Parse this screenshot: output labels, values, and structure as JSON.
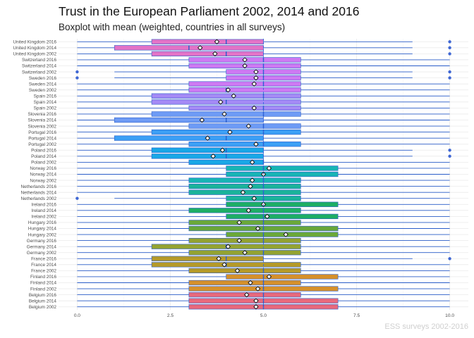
{
  "chart_data": {
    "type": "boxplot",
    "title": "Trust in the European Parliament 2002, 2014 and 2016",
    "subtitle": "Boxplot with mean (weighted, countries in all surveys)",
    "caption": "ESS surveys 2002-2016",
    "xlim": [
      -0.5,
      10.5
    ],
    "xticks": [
      "0.0",
      "2.5",
      "5.0",
      "7.5",
      "10.0"
    ],
    "grid": true,
    "overall_mean": 5.0,
    "categories": [
      {
        "label": "United Kingdom 2016",
        "color": "#e373c7",
        "whisker": [
          0,
          9
        ],
        "box": [
          2,
          5
        ],
        "median": 4,
        "mean": 3.75,
        "outliers": [
          10
        ]
      },
      {
        "label": "United Kingdom 2014",
        "color": "#e373c7",
        "whisker": [
          0,
          9
        ],
        "box": [
          1,
          5
        ],
        "median": 3,
        "mean": 3.3,
        "outliers": [
          10
        ]
      },
      {
        "label": "United Kingdom 2002",
        "color": "#e373c7",
        "whisker": [
          0,
          9
        ],
        "box": [
          2,
          5
        ],
        "median": 4,
        "mean": 3.7,
        "outliers": [
          10
        ]
      },
      {
        "label": "Switzerland 2016",
        "color": "#cd79f2",
        "whisker": [
          0,
          10
        ],
        "box": [
          3,
          6
        ],
        "median": 5,
        "mean": 4.5,
        "outliers": []
      },
      {
        "label": "Switzerland 2014",
        "color": "#cd79f2",
        "whisker": [
          0,
          10
        ],
        "box": [
          3,
          6
        ],
        "median": 5,
        "mean": 4.5,
        "outliers": []
      },
      {
        "label": "Switzerland 2002",
        "color": "#cd79f2",
        "whisker": [
          1,
          9
        ],
        "box": [
          4,
          6
        ],
        "median": 5,
        "mean": 4.8,
        "outliers": [
          0,
          10
        ]
      },
      {
        "label": "Sweden 2016",
        "color": "#cd79f2",
        "whisker": [
          1,
          9
        ],
        "box": [
          4,
          6
        ],
        "median": 5,
        "mean": 4.8,
        "outliers": [
          0,
          10
        ]
      },
      {
        "label": "Sweden 2014",
        "color": "#cd79f2",
        "whisker": [
          0,
          10
        ],
        "box": [
          3,
          6
        ],
        "median": 5,
        "mean": 4.75,
        "outliers": []
      },
      {
        "label": "Sweden 2002",
        "color": "#cd79f2",
        "whisker": [
          0,
          10
        ],
        "box": [
          3,
          6
        ],
        "median": 4,
        "mean": 4.05,
        "outliers": []
      },
      {
        "label": "Spain 2016",
        "color": "#a48af5",
        "whisker": [
          0,
          10
        ],
        "box": [
          2,
          6
        ],
        "median": 5,
        "mean": 4.2,
        "outliers": []
      },
      {
        "label": "Spain 2014",
        "color": "#a48af5",
        "whisker": [
          0,
          10
        ],
        "box": [
          2,
          6
        ],
        "median": 4,
        "mean": 3.85,
        "outliers": []
      },
      {
        "label": "Spain 2002",
        "color": "#a48af5",
        "whisker": [
          0,
          10
        ],
        "box": [
          3,
          6
        ],
        "median": 5,
        "mean": 4.75,
        "outliers": []
      },
      {
        "label": "Slovenia 2016",
        "color": "#6e9bf5",
        "whisker": [
          0,
          10
        ],
        "box": [
          2,
          6
        ],
        "median": 5,
        "mean": 3.95,
        "outliers": []
      },
      {
        "label": "Slovenia 2014",
        "color": "#6e9bf5",
        "whisker": [
          0,
          10
        ],
        "box": [
          1,
          5
        ],
        "median": 4,
        "mean": 3.35,
        "outliers": []
      },
      {
        "label": "Slovenia 2002",
        "color": "#6e9bf5",
        "whisker": [
          0,
          10
        ],
        "box": [
          3,
          6
        ],
        "median": 5,
        "mean": 4.6,
        "outliers": []
      },
      {
        "label": "Portugal 2016",
        "color": "#3c9ff5",
        "whisker": [
          0,
          10
        ],
        "box": [
          2,
          6
        ],
        "median": 5,
        "mean": 4.1,
        "outliers": []
      },
      {
        "label": "Portugal 2014",
        "color": "#3c9ff5",
        "whisker": [
          0,
          10
        ],
        "box": [
          1,
          5
        ],
        "median": 4,
        "mean": 3.5,
        "outliers": []
      },
      {
        "label": "Portugal 2002",
        "color": "#3c9ff5",
        "whisker": [
          0,
          10
        ],
        "box": [
          3,
          6
        ],
        "median": 5,
        "mean": 4.8,
        "outliers": []
      },
      {
        "label": "Poland 2016",
        "color": "#19a7e6",
        "whisker": [
          0,
          9
        ],
        "box": [
          2,
          5
        ],
        "median": 4,
        "mean": 3.9,
        "outliers": [
          10
        ]
      },
      {
        "label": "Poland 2014",
        "color": "#19a7e6",
        "whisker": [
          0,
          9
        ],
        "box": [
          2,
          5
        ],
        "median": 4,
        "mean": 3.65,
        "outliers": [
          10
        ]
      },
      {
        "label": "Poland 2002",
        "color": "#19a7e6",
        "whisker": [
          0,
          10
        ],
        "box": [
          3,
          5
        ],
        "median": 5,
        "mean": 4.7,
        "outliers": []
      },
      {
        "label": "Norway 2016",
        "color": "#18b4b4",
        "whisker": [
          0,
          10
        ],
        "box": [
          4,
          7
        ],
        "median": 5,
        "mean": 5.15,
        "outliers": []
      },
      {
        "label": "Norway 2014",
        "color": "#18b4b4",
        "whisker": [
          0,
          10
        ],
        "box": [
          4,
          7
        ],
        "median": 5,
        "mean": 5.0,
        "outliers": []
      },
      {
        "label": "Norway 2002",
        "color": "#18b4b4",
        "whisker": [
          0,
          10
        ],
        "box": [
          3,
          6
        ],
        "median": 5,
        "mean": 4.7,
        "outliers": []
      },
      {
        "label": "Netherlands 2016",
        "color": "#1bb39a",
        "whisker": [
          0,
          10
        ],
        "box": [
          3,
          6
        ],
        "median": 5,
        "mean": 4.65,
        "outliers": []
      },
      {
        "label": "Netherlands 2014",
        "color": "#1bb39a",
        "whisker": [
          0,
          10
        ],
        "box": [
          3,
          6
        ],
        "median": 5,
        "mean": 4.45,
        "outliers": []
      },
      {
        "label": "Netherlands 2002",
        "color": "#1bb39a",
        "whisker": [
          1,
          10
        ],
        "box": [
          4,
          6
        ],
        "median": 5,
        "mean": 4.75,
        "outliers": [
          0
        ]
      },
      {
        "label": "Ireland 2016",
        "color": "#1eae65",
        "whisker": [
          0,
          10
        ],
        "box": [
          4,
          7
        ],
        "median": 5,
        "mean": 5.0,
        "outliers": []
      },
      {
        "label": "Ireland 2014",
        "color": "#1eae65",
        "whisker": [
          0,
          10
        ],
        "box": [
          3,
          6
        ],
        "median": 5,
        "mean": 4.6,
        "outliers": []
      },
      {
        "label": "Ireland 2002",
        "color": "#1eae65",
        "whisker": [
          0,
          10
        ],
        "box": [
          4,
          7
        ],
        "median": 5,
        "mean": 5.1,
        "outliers": []
      },
      {
        "label": "Hungary 2016",
        "color": "#6aa73a",
        "whisker": [
          0,
          10
        ],
        "box": [
          3,
          6
        ],
        "median": 5,
        "mean": 4.35,
        "outliers": []
      },
      {
        "label": "Hungary 2014",
        "color": "#6aa73a",
        "whisker": [
          0,
          10
        ],
        "box": [
          3,
          7
        ],
        "median": 5,
        "mean": 4.85,
        "outliers": []
      },
      {
        "label": "Hungary 2002",
        "color": "#6aa73a",
        "whisker": [
          0,
          10
        ],
        "box": [
          4,
          7
        ],
        "median": 5,
        "mean": 5.6,
        "outliers": []
      },
      {
        "label": "Germany 2016",
        "color": "#94a332",
        "whisker": [
          0,
          10
        ],
        "box": [
          3,
          6
        ],
        "median": 5,
        "mean": 4.35,
        "outliers": []
      },
      {
        "label": "Germany 2014",
        "color": "#94a332",
        "whisker": [
          0,
          10
        ],
        "box": [
          2,
          6
        ],
        "median": 4,
        "mean": 4.05,
        "outliers": []
      },
      {
        "label": "Germany 2002",
        "color": "#94a332",
        "whisker": [
          0,
          10
        ],
        "box": [
          3,
          6
        ],
        "median": 5,
        "mean": 4.5,
        "outliers": []
      },
      {
        "label": "France 2016",
        "color": "#b59a29",
        "whisker": [
          0,
          9
        ],
        "box": [
          2,
          5
        ],
        "median": 4,
        "mean": 3.8,
        "outliers": [
          10
        ]
      },
      {
        "label": "France 2014",
        "color": "#b59a29",
        "whisker": [
          0,
          10
        ],
        "box": [
          2,
          6
        ],
        "median": 4,
        "mean": 3.95,
        "outliers": []
      },
      {
        "label": "France 2002",
        "color": "#b59a29",
        "whisker": [
          0,
          10
        ],
        "box": [
          3,
          6
        ],
        "median": 5,
        "mean": 4.3,
        "outliers": []
      },
      {
        "label": "Finland 2016",
        "color": "#d5902b",
        "whisker": [
          0,
          10
        ],
        "box": [
          4,
          7
        ],
        "median": 5,
        "mean": 5.15,
        "outliers": []
      },
      {
        "label": "Finland 2014",
        "color": "#d5902b",
        "whisker": [
          0,
          10
        ],
        "box": [
          3,
          6
        ],
        "median": 5,
        "mean": 4.65,
        "outliers": []
      },
      {
        "label": "Finland 2002",
        "color": "#d5902b",
        "whisker": [
          0,
          10
        ],
        "box": [
          3,
          7
        ],
        "median": 5,
        "mean": 4.85,
        "outliers": []
      },
      {
        "label": "Belgium 2016",
        "color": "#e8697c",
        "whisker": [
          0,
          10
        ],
        "box": [
          3,
          6
        ],
        "median": 5,
        "mean": 4.55,
        "outliers": []
      },
      {
        "label": "Belgium 2014",
        "color": "#e8697c",
        "whisker": [
          0,
          10
        ],
        "box": [
          3,
          7
        ],
        "median": 5,
        "mean": 4.8,
        "outliers": []
      },
      {
        "label": "Belgium 2002",
        "color": "#e8697c",
        "whisker": [
          0,
          10
        ],
        "box": [
          3,
          7
        ],
        "median": 5,
        "mean": 4.8,
        "outliers": []
      }
    ]
  }
}
